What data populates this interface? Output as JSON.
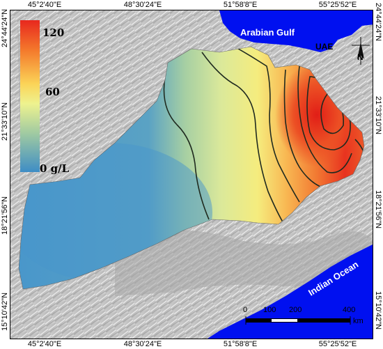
{
  "coordinates": {
    "longitude_labels": [
      "45°2'40\"E",
      "48°30'24\"E",
      "51°58'8\"E",
      "55°25'52\"E"
    ],
    "latitude_labels": [
      "24°44'24\"N",
      "21°33'10\"N",
      "18°21'56\"N",
      "15°10'42\"N"
    ]
  },
  "labels": {
    "arabian_gulf": "Arabian Gulf",
    "uae": "UAE",
    "indian_ocean": "Indian Ocean",
    "north": "N"
  },
  "legend": {
    "max": "120",
    "mid": "60",
    "min": "0 g/L",
    "colors": [
      "#e8281e",
      "#f47a2c",
      "#fbd458",
      "#eef28f",
      "#9ec9a2",
      "#3e8dc5"
    ]
  },
  "scale_bar": {
    "ticks": [
      "0",
      "100",
      "200",
      "400"
    ],
    "unit": "km"
  },
  "colors": {
    "sea": "#0010f0",
    "low": "#4896cb",
    "high": "#e8281e"
  }
}
